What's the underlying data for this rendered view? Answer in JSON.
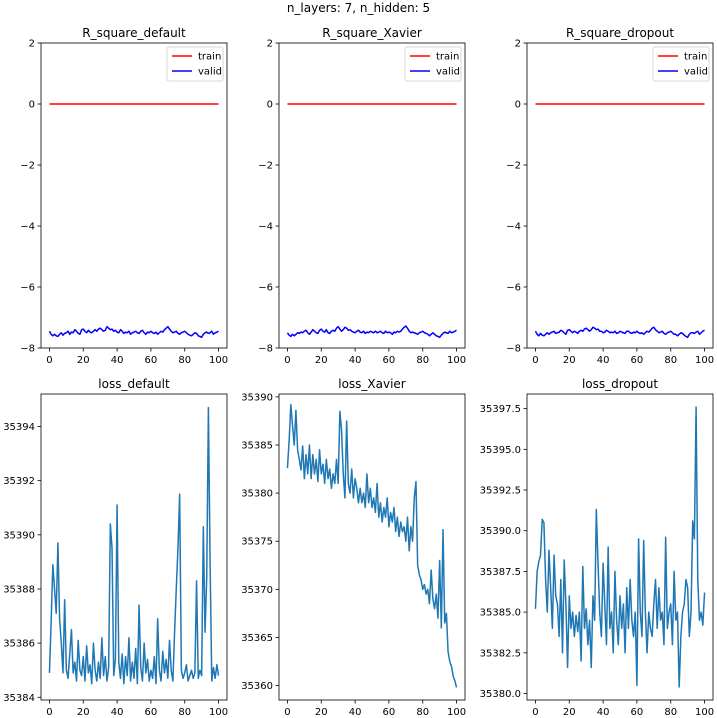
{
  "figure": {
    "suptitle": "n_layers: 7, n_hidden: 5"
  },
  "chart_data": [
    {
      "type": "line",
      "title": "R_square_default",
      "xlim": [
        -5,
        105
      ],
      "ylim": [
        -8,
        2
      ],
      "xticks": [
        0,
        20,
        40,
        60,
        80,
        100
      ],
      "yticks": [
        -8,
        -6,
        -4,
        -2,
        0,
        2
      ],
      "xtick_labels": [
        "0",
        "20",
        "40",
        "60",
        "80",
        "100"
      ],
      "ytick_labels": [
        "−8",
        "−6",
        "−4",
        "−2",
        "0",
        "2"
      ],
      "legend": {
        "location": "upper right",
        "entries": [
          "train",
          "valid"
        ]
      },
      "series": [
        {
          "name": "train",
          "color": "#ff0000",
          "x_start": 0,
          "x_end": 100,
          "values": [
            0,
            0
          ]
        },
        {
          "name": "valid",
          "color": "#0000ff",
          "x_start": 0,
          "x_end": 100,
          "values": [
            -7.45,
            -7.55,
            -7.6,
            -7.55,
            -7.6,
            -7.62,
            -7.55,
            -7.5,
            -7.58,
            -7.52,
            -7.5,
            -7.45,
            -7.55,
            -7.48,
            -7.5,
            -7.4,
            -7.45,
            -7.52,
            -7.55,
            -7.4,
            -7.38,
            -7.45,
            -7.5,
            -7.42,
            -7.48,
            -7.5,
            -7.45,
            -7.4,
            -7.45,
            -7.38,
            -7.35,
            -7.4,
            -7.45,
            -7.42,
            -7.3,
            -7.35,
            -7.4,
            -7.38,
            -7.45,
            -7.42,
            -7.48,
            -7.5,
            -7.4,
            -7.45,
            -7.52,
            -7.48,
            -7.5,
            -7.45,
            -7.55,
            -7.5,
            -7.48,
            -7.45,
            -7.5,
            -7.52,
            -7.45,
            -7.42,
            -7.5,
            -7.55,
            -7.48,
            -7.5,
            -7.45,
            -7.5,
            -7.52,
            -7.48,
            -7.55,
            -7.5,
            -7.45,
            -7.48,
            -7.4,
            -7.35,
            -7.3,
            -7.38,
            -7.45,
            -7.5,
            -7.48,
            -7.45,
            -7.52,
            -7.55,
            -7.5,
            -7.48,
            -7.45,
            -7.5,
            -7.55,
            -7.58,
            -7.6,
            -7.55,
            -7.5,
            -7.52,
            -7.6,
            -7.62,
            -7.65,
            -7.55,
            -7.5,
            -7.48,
            -7.52,
            -7.5,
            -7.45,
            -7.55,
            -7.5,
            -7.48,
            -7.45
          ]
        }
      ]
    },
    {
      "type": "line",
      "title": "R_square_Xavier",
      "xlim": [
        -5,
        105
      ],
      "ylim": [
        -8,
        2
      ],
      "xticks": [
        0,
        20,
        40,
        60,
        80,
        100
      ],
      "yticks": [
        -8,
        -6,
        -4,
        -2,
        0,
        2
      ],
      "xtick_labels": [
        "0",
        "20",
        "40",
        "60",
        "80",
        "100"
      ],
      "ytick_labels": [
        "−8",
        "−6",
        "−4",
        "−2",
        "0",
        "2"
      ],
      "legend": {
        "location": "upper right",
        "entries": [
          "train",
          "valid"
        ]
      },
      "series": [
        {
          "name": "train",
          "color": "#ff0000",
          "x_start": 0,
          "x_end": 100,
          "values": [
            0,
            0
          ]
        },
        {
          "name": "valid",
          "color": "#0000ff",
          "x_start": 0,
          "x_end": 100,
          "values": [
            -7.5,
            -7.58,
            -7.62,
            -7.55,
            -7.6,
            -7.55,
            -7.5,
            -7.52,
            -7.48,
            -7.5,
            -7.45,
            -7.42,
            -7.5,
            -7.55,
            -7.48,
            -7.4,
            -7.45,
            -7.5,
            -7.52,
            -7.42,
            -7.38,
            -7.45,
            -7.48,
            -7.4,
            -7.5,
            -7.52,
            -7.45,
            -7.42,
            -7.45,
            -7.35,
            -7.3,
            -7.38,
            -7.45,
            -7.4,
            -7.32,
            -7.35,
            -7.42,
            -7.4,
            -7.45,
            -7.48,
            -7.5,
            -7.45,
            -7.42,
            -7.48,
            -7.5,
            -7.45,
            -7.52,
            -7.48,
            -7.5,
            -7.45,
            -7.48,
            -7.5,
            -7.45,
            -7.5,
            -7.48,
            -7.45,
            -7.5,
            -7.52,
            -7.45,
            -7.5,
            -7.48,
            -7.5,
            -7.55,
            -7.48,
            -7.5,
            -7.45,
            -7.48,
            -7.45,
            -7.38,
            -7.32,
            -7.28,
            -7.35,
            -7.45,
            -7.5,
            -7.48,
            -7.5,
            -7.52,
            -7.55,
            -7.5,
            -7.48,
            -7.45,
            -7.5,
            -7.52,
            -7.55,
            -7.6,
            -7.55,
            -7.5,
            -7.55,
            -7.6,
            -7.62,
            -7.65,
            -7.58,
            -7.52,
            -7.48,
            -7.5,
            -7.52,
            -7.45,
            -7.5,
            -7.48,
            -7.45,
            -7.42
          ]
        }
      ]
    },
    {
      "type": "line",
      "title": "R_square_dropout",
      "xlim": [
        -5,
        105
      ],
      "ylim": [
        -8,
        2
      ],
      "xticks": [
        0,
        20,
        40,
        60,
        80,
        100
      ],
      "yticks": [
        -8,
        -6,
        -4,
        -2,
        0,
        2
      ],
      "xtick_labels": [
        "0",
        "20",
        "40",
        "60",
        "80",
        "100"
      ],
      "ytick_labels": [
        "−8",
        "−6",
        "−4",
        "−2",
        "0",
        "2"
      ],
      "legend": {
        "location": "upper right",
        "entries": [
          "train",
          "valid"
        ]
      },
      "series": [
        {
          "name": "train",
          "color": "#ff0000",
          "x_start": 0,
          "x_end": 100,
          "values": [
            0,
            0
          ]
        },
        {
          "name": "valid",
          "color": "#0000ff",
          "x_start": 0,
          "x_end": 100,
          "values": [
            -7.45,
            -7.55,
            -7.6,
            -7.52,
            -7.58,
            -7.6,
            -7.55,
            -7.5,
            -7.55,
            -7.5,
            -7.48,
            -7.45,
            -7.52,
            -7.5,
            -7.48,
            -7.42,
            -7.45,
            -7.5,
            -7.55,
            -7.42,
            -7.4,
            -7.45,
            -7.5,
            -7.45,
            -7.48,
            -7.52,
            -7.45,
            -7.42,
            -7.45,
            -7.38,
            -7.35,
            -7.4,
            -7.45,
            -7.4,
            -7.32,
            -7.35,
            -7.4,
            -7.38,
            -7.45,
            -7.45,
            -7.5,
            -7.48,
            -7.42,
            -7.45,
            -7.5,
            -7.48,
            -7.5,
            -7.45,
            -7.52,
            -7.5,
            -7.45,
            -7.48,
            -7.5,
            -7.52,
            -7.45,
            -7.45,
            -7.5,
            -7.52,
            -7.48,
            -7.5,
            -7.45,
            -7.5,
            -7.52,
            -7.5,
            -7.55,
            -7.5,
            -7.45,
            -7.48,
            -7.42,
            -7.35,
            -7.32,
            -7.4,
            -7.45,
            -7.5,
            -7.48,
            -7.45,
            -7.52,
            -7.55,
            -7.5,
            -7.48,
            -7.45,
            -7.5,
            -7.55,
            -7.55,
            -7.6,
            -7.55,
            -7.5,
            -7.52,
            -7.58,
            -7.62,
            -7.65,
            -7.55,
            -7.5,
            -7.5,
            -7.52,
            -7.48,
            -7.45,
            -7.55,
            -7.5,
            -7.45,
            -7.42
          ]
        }
      ]
    },
    {
      "type": "line",
      "title": "loss_default",
      "xlim": [
        -5,
        105
      ],
      "ylim": [
        35383.9,
        35395.2
      ],
      "xticks": [
        0,
        20,
        40,
        60,
        80,
        100
      ],
      "yticks": [
        35384,
        35386,
        35388,
        35390,
        35392,
        35394
      ],
      "xtick_labels": [
        "0",
        "20",
        "40",
        "60",
        "80",
        "100"
      ],
      "ytick_labels": [
        "35384",
        "35386",
        "35388",
        "35390",
        "35392",
        "35394"
      ],
      "series": [
        {
          "color": "#1f77b4",
          "x_start": 0,
          "x_end": 100,
          "values": [
            35384.9,
            35386.8,
            35388.9,
            35388.0,
            35387.1,
            35389.7,
            35386.9,
            35386.0,
            35384.9,
            35387.6,
            35385.0,
            35384.7,
            35385.6,
            35386.5,
            35384.9,
            35385.3,
            35384.6,
            35386.1,
            35385.0,
            35384.8,
            35385.5,
            35384.6,
            35385.9,
            35384.9,
            35385.2,
            35384.5,
            35386.0,
            35385.0,
            35384.6,
            35385.3,
            35384.7,
            35386.2,
            35384.8,
            35385.5,
            35384.6,
            35385.1,
            35390.4,
            35389.5,
            35384.8,
            35385.4,
            35391.1,
            35385.3,
            35384.7,
            35385.6,
            35384.5,
            35385.5,
            35384.8,
            35386.2,
            35384.6,
            35385.3,
            35384.7,
            35385.8,
            35384.5,
            35387.4,
            35385.1,
            35384.6,
            35386.0,
            35384.9,
            35385.4,
            35384.6,
            35385.0,
            35384.7,
            35385.5,
            35384.5,
            35386.9,
            35385.0,
            35384.6,
            35385.7,
            35384.9,
            35385.4,
            35384.7,
            35386.1,
            35385.0,
            35384.6,
            35386.4,
            35388.0,
            35389.5,
            35391.5,
            35385.0,
            35384.7,
            35384.9,
            35385.2,
            35384.6,
            35384.8,
            35385.0,
            35384.7,
            35384.9,
            35388.3,
            35384.7,
            35385.0,
            35384.8,
            35390.3,
            35386.4,
            35388.4,
            35394.7,
            35389.0,
            35384.6,
            35385.1,
            35384.7,
            35385.2,
            35384.8
          ]
        }
      ]
    },
    {
      "type": "line",
      "title": "loss_Xavier",
      "xlim": [
        -5,
        105
      ],
      "ylim": [
        35358.5,
        35390.3
      ],
      "xticks": [
        0,
        20,
        40,
        60,
        80,
        100
      ],
      "yticks": [
        35360,
        35365,
        35370,
        35375,
        35380,
        35385,
        35390
      ],
      "xtick_labels": [
        "0",
        "20",
        "40",
        "60",
        "80",
        "100"
      ],
      "ytick_labels": [
        "35360",
        "35365",
        "35370",
        "35375",
        "35380",
        "35385",
        "35390"
      ],
      "series": [
        {
          "color": "#1f77b4",
          "x_start": 0,
          "x_end": 100,
          "values": [
            35382.6,
            35385.5,
            35389.2,
            35387.0,
            35385.0,
            35388.6,
            35384.5,
            35383.5,
            35382.4,
            35384.9,
            35381.5,
            35384.0,
            35382.0,
            35385.0,
            35381.5,
            35384.0,
            35382.0,
            35383.5,
            35381.2,
            35384.5,
            35382.0,
            35383.0,
            35381.0,
            35383.5,
            35381.5,
            35382.5,
            35380.5,
            35382.0,
            35381.0,
            35383.5,
            35381.0,
            35388.5,
            35386.5,
            35382.0,
            35379.5,
            35387.5,
            35381.0,
            35380.0,
            35382.5,
            35379.5,
            35381.5,
            35380.5,
            35379.0,
            35380.5,
            35379.0,
            35380.0,
            35378.5,
            35382.0,
            35379.0,
            35380.5,
            35378.5,
            35379.5,
            35378.0,
            35381.0,
            35377.5,
            35379.0,
            35377.0,
            35378.5,
            35377.5,
            35379.5,
            35376.5,
            35378.0,
            35377.0,
            35378.5,
            35376.0,
            35377.5,
            35375.5,
            35377.0,
            35376.0,
            35376.5,
            35375.0,
            35377.5,
            35374.0,
            35376.5,
            35375.0,
            35379.5,
            35381.2,
            35372.5,
            35371.5,
            35371.0,
            35370.0,
            35370.5,
            35369.5,
            35370.0,
            35368.5,
            35372.0,
            35369.0,
            35368.0,
            35369.5,
            35367.0,
            35373.0,
            35366.0,
            35376.2,
            35366.5,
            35367.5,
            35363.5,
            35362.5,
            35362.0,
            35361.0,
            35360.5,
            35359.8
          ]
        }
      ]
    },
    {
      "type": "line",
      "title": "loss_dropout",
      "xlim": [
        -5,
        105
      ],
      "ylim": [
        35379.6,
        35398.4
      ],
      "xticks": [
        0,
        20,
        40,
        60,
        80,
        100
      ],
      "yticks": [
        35380.0,
        35382.5,
        35385.0,
        35387.5,
        35390.0,
        35392.5,
        35395.0,
        35397.5
      ],
      "xtick_labels": [
        "0",
        "20",
        "40",
        "60",
        "80",
        "100"
      ],
      "ytick_labels": [
        "35380.0",
        "35382.5",
        "35385.0",
        "35387.5",
        "35390.0",
        "35392.5",
        "35395.0",
        "35397.5"
      ],
      "series": [
        {
          "color": "#1f77b4",
          "x_start": 0,
          "x_end": 100,
          "values": [
            35385.2,
            35387.5,
            35388.1,
            35388.5,
            35390.7,
            35390.5,
            35387.0,
            35385.0,
            35388.8,
            35386.5,
            35384.0,
            35388.5,
            35386.0,
            35385.5,
            35383.5,
            35387.0,
            35382.5,
            35388.2,
            35385.5,
            35381.6,
            35386.0,
            35384.0,
            35385.0,
            35383.5,
            35384.8,
            35383.8,
            35385.0,
            35382.0,
            35387.8,
            35384.0,
            35385.2,
            35383.0,
            35384.5,
            35381.6,
            35386.0,
            35384.5,
            35391.3,
            35388.0,
            35385.0,
            35383.5,
            35388.0,
            35385.5,
            35383.0,
            35389.0,
            35384.0,
            35385.0,
            35382.5,
            35387.5,
            35384.5,
            35383.0,
            35386.0,
            35384.0,
            35385.5,
            35382.5,
            35386.5,
            35384.0,
            35387.0,
            35384.5,
            35383.5,
            35385.0,
            35380.5,
            35389.5,
            35385.0,
            35383.5,
            35389.4,
            35385.0,
            35382.5,
            35385.0,
            35384.0,
            35383.5,
            35385.5,
            35387.0,
            35384.0,
            35386.5,
            35384.5,
            35385.0,
            35383.0,
            35389.6,
            35384.0,
            35385.0,
            35385.5,
            35383.0,
            35387.5,
            35384.5,
            35385.0,
            35380.4,
            35383.5,
            35385.0,
            35385.5,
            35387.0,
            35386.5,
            35383.5,
            35385.0,
            35390.6,
            35389.5,
            35397.6,
            35387.0,
            35384.5,
            35385.0,
            35384.2,
            35386.2
          ]
        }
      ]
    }
  ]
}
